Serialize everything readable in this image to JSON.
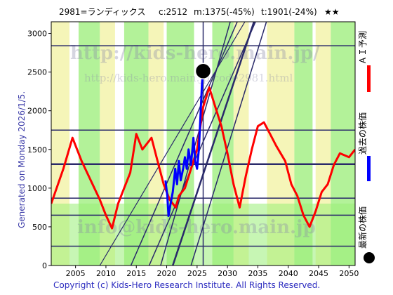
{
  "header": {
    "code_name": "2981=ランディックス",
    "current": "c:2512",
    "max": "m:1375(-45%)",
    "target": "t:1901(-24%)",
    "stars": "★★"
  },
  "side_left": "Generated on Monday 2026/1/5.",
  "legend": {
    "ai_forecast": "ＡＩ予測",
    "past_price": "過去の株価",
    "latest_price": "最新の株価"
  },
  "watermarks": {
    "main": "http://kids-hero.main.jp/",
    "sub": "http://kids-hero.main.jp/code2981.html",
    "email": "info@kids-hero.main.jp"
  },
  "footer": "Copyright (c) Kids-Hero Research Institute. All Rights Reserved.",
  "colors": {
    "ai_forecast": "#ff0000",
    "past_price": "#0000ff",
    "latest_marker": "#000000",
    "band_green": "#99ee77",
    "band_yellow": "#f2f2a0",
    "hline": "#2a2a6a"
  },
  "chart_data": {
    "type": "line",
    "x_ticks": [
      2005,
      2010,
      2015,
      2020,
      2025,
      2030,
      2035,
      2040,
      2045,
      2050
    ],
    "y_ticks": [
      0,
      500,
      1000,
      1500,
      2000,
      2500,
      3000
    ],
    "xlim": [
      2001,
      2051
    ],
    "ylim": [
      0,
      3150
    ],
    "horizontal_levels": [
      250,
      650,
      870,
      1310,
      1750,
      2840
    ],
    "latest": {
      "x": 2026.0,
      "y": 2512
    },
    "series": [
      {
        "key": "ai_forecast",
        "points": [
          [
            2001,
            800
          ],
          [
            2003,
            1250
          ],
          [
            2004.5,
            1650
          ],
          [
            2006,
            1350
          ],
          [
            2007.5,
            1100
          ],
          [
            2009,
            850
          ],
          [
            2010,
            650
          ],
          [
            2011,
            480
          ],
          [
            2012,
            800
          ],
          [
            2013,
            1000
          ],
          [
            2014,
            1200
          ],
          [
            2015,
            1700
          ],
          [
            2016,
            1500
          ],
          [
            2017.5,
            1650
          ],
          [
            2018.5,
            1350
          ],
          [
            2019.5,
            1050
          ],
          [
            2020.5,
            850
          ],
          [
            2021.5,
            750
          ],
          [
            2022,
            900
          ],
          [
            2023,
            1000
          ],
          [
            2024,
            1250
          ],
          [
            2025,
            1500
          ],
          [
            2026,
            2050
          ],
          [
            2027,
            2300
          ],
          [
            2028,
            2050
          ],
          [
            2029,
            1800
          ],
          [
            2030,
            1450
          ],
          [
            2031,
            1050
          ],
          [
            2032,
            750
          ],
          [
            2033,
            1150
          ],
          [
            2034,
            1500
          ],
          [
            2035,
            1800
          ],
          [
            2036,
            1850
          ],
          [
            2037,
            1700
          ],
          [
            2038,
            1550
          ],
          [
            2039.5,
            1350
          ],
          [
            2040.5,
            1050
          ],
          [
            2041.5,
            900
          ],
          [
            2042.5,
            650
          ],
          [
            2043.5,
            500
          ],
          [
            2044.5,
            700
          ],
          [
            2045.5,
            950
          ],
          [
            2046.5,
            1050
          ],
          [
            2047.5,
            1300
          ],
          [
            2048.5,
            1450
          ],
          [
            2050,
            1400
          ],
          [
            2051,
            1500
          ]
        ]
      },
      {
        "key": "past_price",
        "points": [
          [
            2019.8,
            1100
          ],
          [
            2020.1,
            900
          ],
          [
            2020.3,
            640
          ],
          [
            2020.6,
            780
          ],
          [
            2021.0,
            950
          ],
          [
            2021.4,
            1250
          ],
          [
            2021.7,
            1050
          ],
          [
            2022.0,
            1350
          ],
          [
            2022.3,
            1100
          ],
          [
            2022.7,
            1250
          ],
          [
            2023.0,
            1400
          ],
          [
            2023.3,
            1250
          ],
          [
            2023.6,
            1500
          ],
          [
            2024.0,
            1300
          ],
          [
            2024.4,
            1650
          ],
          [
            2024.7,
            1350
          ],
          [
            2025.0,
            1250
          ],
          [
            2025.3,
            1500
          ],
          [
            2025.6,
            2000
          ],
          [
            2025.8,
            2350
          ],
          [
            2026.0,
            2512
          ]
        ]
      }
    ]
  }
}
